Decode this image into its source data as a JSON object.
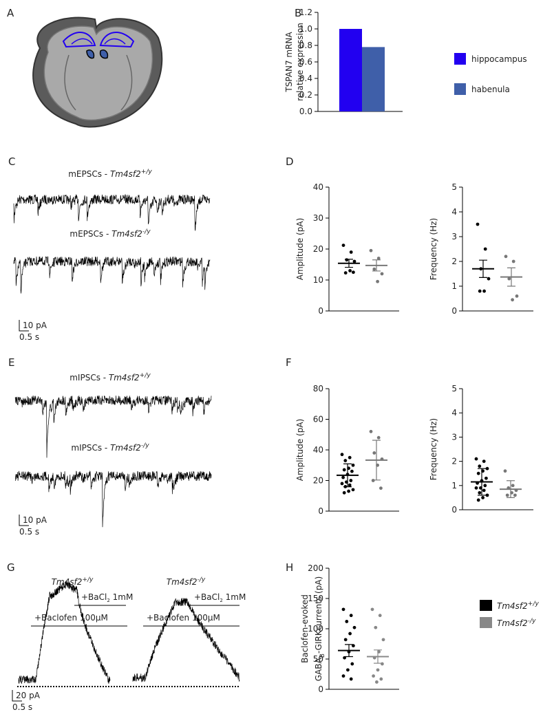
{
  "figure_labels": [
    "A",
    "B",
    "C",
    "D",
    "E",
    "F",
    "G",
    "H"
  ],
  "traces": {
    "C": [
      {
        "prefix": "mEPSCs - ",
        "gene": "Tm4sf2",
        "sup": "+/y"
      },
      {
        "prefix": "mEPSCs - ",
        "gene": "Tm4sf2",
        "sup": "-/y"
      }
    ],
    "C_scale": [
      "10 pA",
      "0.5 s"
    ],
    "E": [
      {
        "prefix": "mIPSCs - ",
        "gene": "Tm4sf2",
        "sup": "+/y"
      },
      {
        "prefix": "mIPSCs - ",
        "gene": "Tm4sf2",
        "sup": "-/y"
      }
    ],
    "E_scale": [
      "10 pA",
      "0.5 s"
    ],
    "G": {
      "groups": [
        {
          "gene": "Tm4sf2",
          "sup": "+/y"
        },
        {
          "gene": "Tm4sf2",
          "sup": "-/y"
        }
      ],
      "baclofen": "+Baclofen 100µM",
      "bacl": {
        "text": "+BaCl",
        "sub": "2",
        "rest": " 1mM"
      },
      "scale": [
        "20 pA",
        "0.5 s"
      ]
    }
  },
  "chart_data": [
    {
      "type": "bar",
      "ylabel": [
        "TSPAN7 mRNA",
        "relative expression"
      ],
      "ylim": [
        0,
        1.2
      ],
      "yticks": [
        {
          "value": 0,
          "label": "0.0"
        },
        {
          "value": 0.2,
          "label": "0.2"
        },
        {
          "value": 0.4,
          "label": "0.4"
        },
        {
          "value": 0.6,
          "label": "0.6"
        },
        {
          "value": 0.8,
          "label": "0.8"
        },
        {
          "value": 1,
          "label": "1.0"
        },
        {
          "value": 1.2,
          "label": "1.2"
        }
      ],
      "series": [
        {
          "name": "hippocampus",
          "color": "#2200f0",
          "values": [
            1.0
          ]
        },
        {
          "name": "habenula",
          "color": "#3f5fa9",
          "values": [
            0.78
          ]
        }
      ]
    },
    {
      "type": "dot",
      "ylabel": [
        "Amplitude (pA)"
      ],
      "ylim": [
        0,
        40
      ],
      "yticks": [
        0,
        10,
        20,
        30,
        40
      ],
      "series": [
        {
          "color": "#000000",
          "values": [
            21.2,
            19,
            16.5,
            16,
            13,
            12.3,
            12.5
          ],
          "mean": 15.4,
          "error": 1.3
        },
        {
          "color": "#777777",
          "values": [
            19.5,
            17,
            13.5,
            12,
            9.5
          ],
          "mean": 14.7,
          "error": 1.8
        }
      ]
    },
    {
      "type": "dot",
      "ylabel": [
        "Frequency (Hz)"
      ],
      "ylim": [
        0,
        5
      ],
      "yticks": [
        0,
        1,
        2,
        3,
        4,
        5
      ],
      "series": [
        {
          "color": "#000000",
          "values": [
            3.5,
            2.5,
            1.7,
            1.3,
            0.8,
            0.8
          ],
          "mean": 1.7,
          "error": 0.35
        },
        {
          "color": "#777777",
          "values": [
            2.2,
            2.0,
            1.3,
            0.6,
            0.45
          ],
          "mean": 1.37,
          "error": 0.37
        }
      ]
    },
    {
      "type": "dot",
      "ylabel": [
        "Amplitude (pA)"
      ],
      "ylim": [
        0,
        80
      ],
      "yticks": [
        0,
        20,
        40,
        60,
        80
      ],
      "series": [
        {
          "color": "#000000",
          "values": [
            37,
            35,
            33,
            30,
            28,
            27,
            26,
            24,
            22,
            20,
            19,
            18,
            17,
            16,
            14,
            13,
            12
          ],
          "mean": 23.4,
          "error": 7.5
        },
        {
          "color": "#777777",
          "values": [
            52,
            48,
            38,
            34,
            30,
            20,
            15
          ],
          "mean": 33.3,
          "error": 13
        }
      ]
    },
    {
      "type": "dot",
      "ylabel": [
        "Frequency (Hz)"
      ],
      "ylim": [
        0,
        5
      ],
      "yticks": [
        0,
        1,
        2,
        3,
        4,
        5
      ],
      "series": [
        {
          "color": "#000000",
          "values": [
            2.1,
            2.0,
            1.8,
            1.7,
            1.6,
            1.5,
            1.3,
            1.2,
            1.1,
            1.0,
            0.9,
            0.9,
            0.8,
            0.7,
            0.6,
            0.5,
            0.4
          ],
          "mean": 1.15,
          "error": 0.55
        },
        {
          "color": "#777777",
          "values": [
            1.6,
            1.0,
            0.9,
            0.8,
            0.7,
            0.6,
            0.6
          ],
          "mean": 0.85,
          "error": 0.35
        }
      ]
    },
    {
      "type": "dot",
      "ylabel": [
        "Baclofen-evoked",
        {
          "text": "GABA",
          "sub": "B",
          "rest": "-GIRKcurrents (pA)"
        }
      ],
      "ylim": [
        0,
        200
      ],
      "yticks": [
        0,
        50,
        100,
        150,
        200
      ],
      "series": [
        {
          "name": {
            "gene": "Tm4sf2",
            "sup": "+/y"
          },
          "color": "#000000",
          "values": [
            132,
            122,
            112,
            102,
            92,
            82,
            72,
            62,
            52,
            42,
            32,
            22,
            17
          ],
          "mean": 64,
          "error": 10
        },
        {
          "name": {
            "gene": "Tm4sf2",
            "sup": "-/y"
          },
          "color": "#888888",
          "values": [
            132,
            122,
            102,
            82,
            62,
            52,
            42,
            32,
            22,
            17,
            12
          ],
          "mean": 54,
          "error": 11
        }
      ]
    }
  ]
}
